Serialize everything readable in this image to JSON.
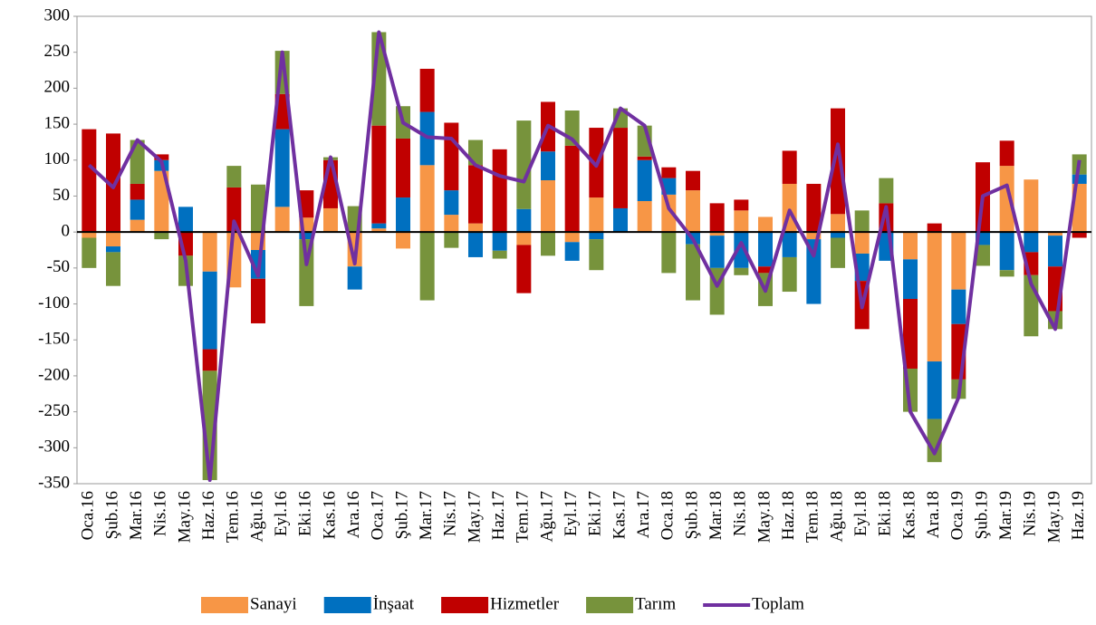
{
  "chart_data": {
    "type": "bar",
    "categories": [
      "Oca.16",
      "Şub.16",
      "Mar.16",
      "Nis.16",
      "May.16",
      "Haz.16",
      "Tem.16",
      "Ağu.16",
      "Eyl.16",
      "Eki.16",
      "Kas.16",
      "Ara.16",
      "Oca.17",
      "Şub.17",
      "Mar.17",
      "Nis.17",
      "May.17",
      "Haz.17",
      "Tem.17",
      "Ağu.17",
      "Eyl.17",
      "Eki.17",
      "Kas.17",
      "Ara.17",
      "Oca.18",
      "Şub.18",
      "Mar.18",
      "Nis.18",
      "May.18",
      "Haz.18",
      "Tem.18",
      "Ağu.18",
      "Eyl.18",
      "Eki.18",
      "Kas.18",
      "Ara.18",
      "Oca.19",
      "Şub.19",
      "Mar.19",
      "Nis.19",
      "May.19",
      "Haz.19"
    ],
    "series": [
      {
        "name": "Sanayi",
        "color": "#f79646",
        "values": [
          -8,
          -20,
          17,
          85,
          0,
          -55,
          -77,
          -25,
          35,
          20,
          33,
          -48,
          5,
          -23,
          93,
          24,
          12,
          0,
          -18,
          72,
          -14,
          48,
          0,
          43,
          52,
          58,
          -5,
          30,
          21,
          67,
          -10,
          25,
          -30,
          0,
          -38,
          -180,
          -80,
          0,
          92,
          73,
          -5,
          67
        ]
      },
      {
        "name": "İnşaat",
        "color": "#0070c0",
        "values": [
          0,
          -8,
          28,
          15,
          35,
          -108,
          0,
          -40,
          108,
          -10,
          0,
          -32,
          7,
          48,
          74,
          34,
          -35,
          -26,
          32,
          40,
          -26,
          -10,
          33,
          57,
          23,
          -17,
          -45,
          -50,
          -48,
          -35,
          -90,
          -8,
          -38,
          -40,
          -55,
          -80,
          -48,
          -18,
          -53,
          -28,
          -43,
          13
        ]
      },
      {
        "name": "Hizmetler",
        "color": "#c00000",
        "values": [
          143,
          137,
          22,
          8,
          -33,
          -30,
          62,
          -62,
          49,
          38,
          67,
          0,
          136,
          82,
          60,
          94,
          81,
          115,
          -67,
          69,
          120,
          97,
          112,
          5,
          15,
          27,
          40,
          15,
          -9,
          46,
          67,
          147,
          -67,
          40,
          -97,
          12,
          -77,
          97,
          35,
          -32,
          -62,
          -8
        ]
      },
      {
        "name": "Tarım",
        "color": "#77933c",
        "values": [
          -42,
          -47,
          61,
          -10,
          -42,
          -152,
          30,
          66,
          60,
          -93,
          4,
          36,
          130,
          45,
          -95,
          -22,
          35,
          -11,
          123,
          -33,
          49,
          -43,
          27,
          43,
          -57,
          -78,
          -65,
          -10,
          -46,
          -48,
          0,
          -42,
          30,
          35,
          -60,
          -60,
          -27,
          -29,
          -9,
          -85,
          -25,
          28
        ]
      },
      {
        "name": "Toplam",
        "color": "#7030a0",
        "line": true,
        "values": [
          93,
          62,
          128,
          98,
          -40,
          -345,
          15,
          -61,
          250,
          -45,
          104,
          -44,
          278,
          152,
          132,
          130,
          93,
          78,
          70,
          148,
          129,
          92,
          172,
          148,
          33,
          -10,
          -75,
          -15,
          -82,
          30,
          -33,
          122,
          -105,
          35,
          -250,
          -308,
          -230,
          50,
          65,
          -72,
          -135,
          100
        ]
      }
    ],
    "ylim": [
      -350,
      300
    ],
    "yticks": [
      -350,
      -300,
      -250,
      -200,
      -150,
      -100,
      -50,
      0,
      50,
      100,
      150,
      200,
      250,
      300
    ],
    "grid": false,
    "legend": "bottom"
  }
}
